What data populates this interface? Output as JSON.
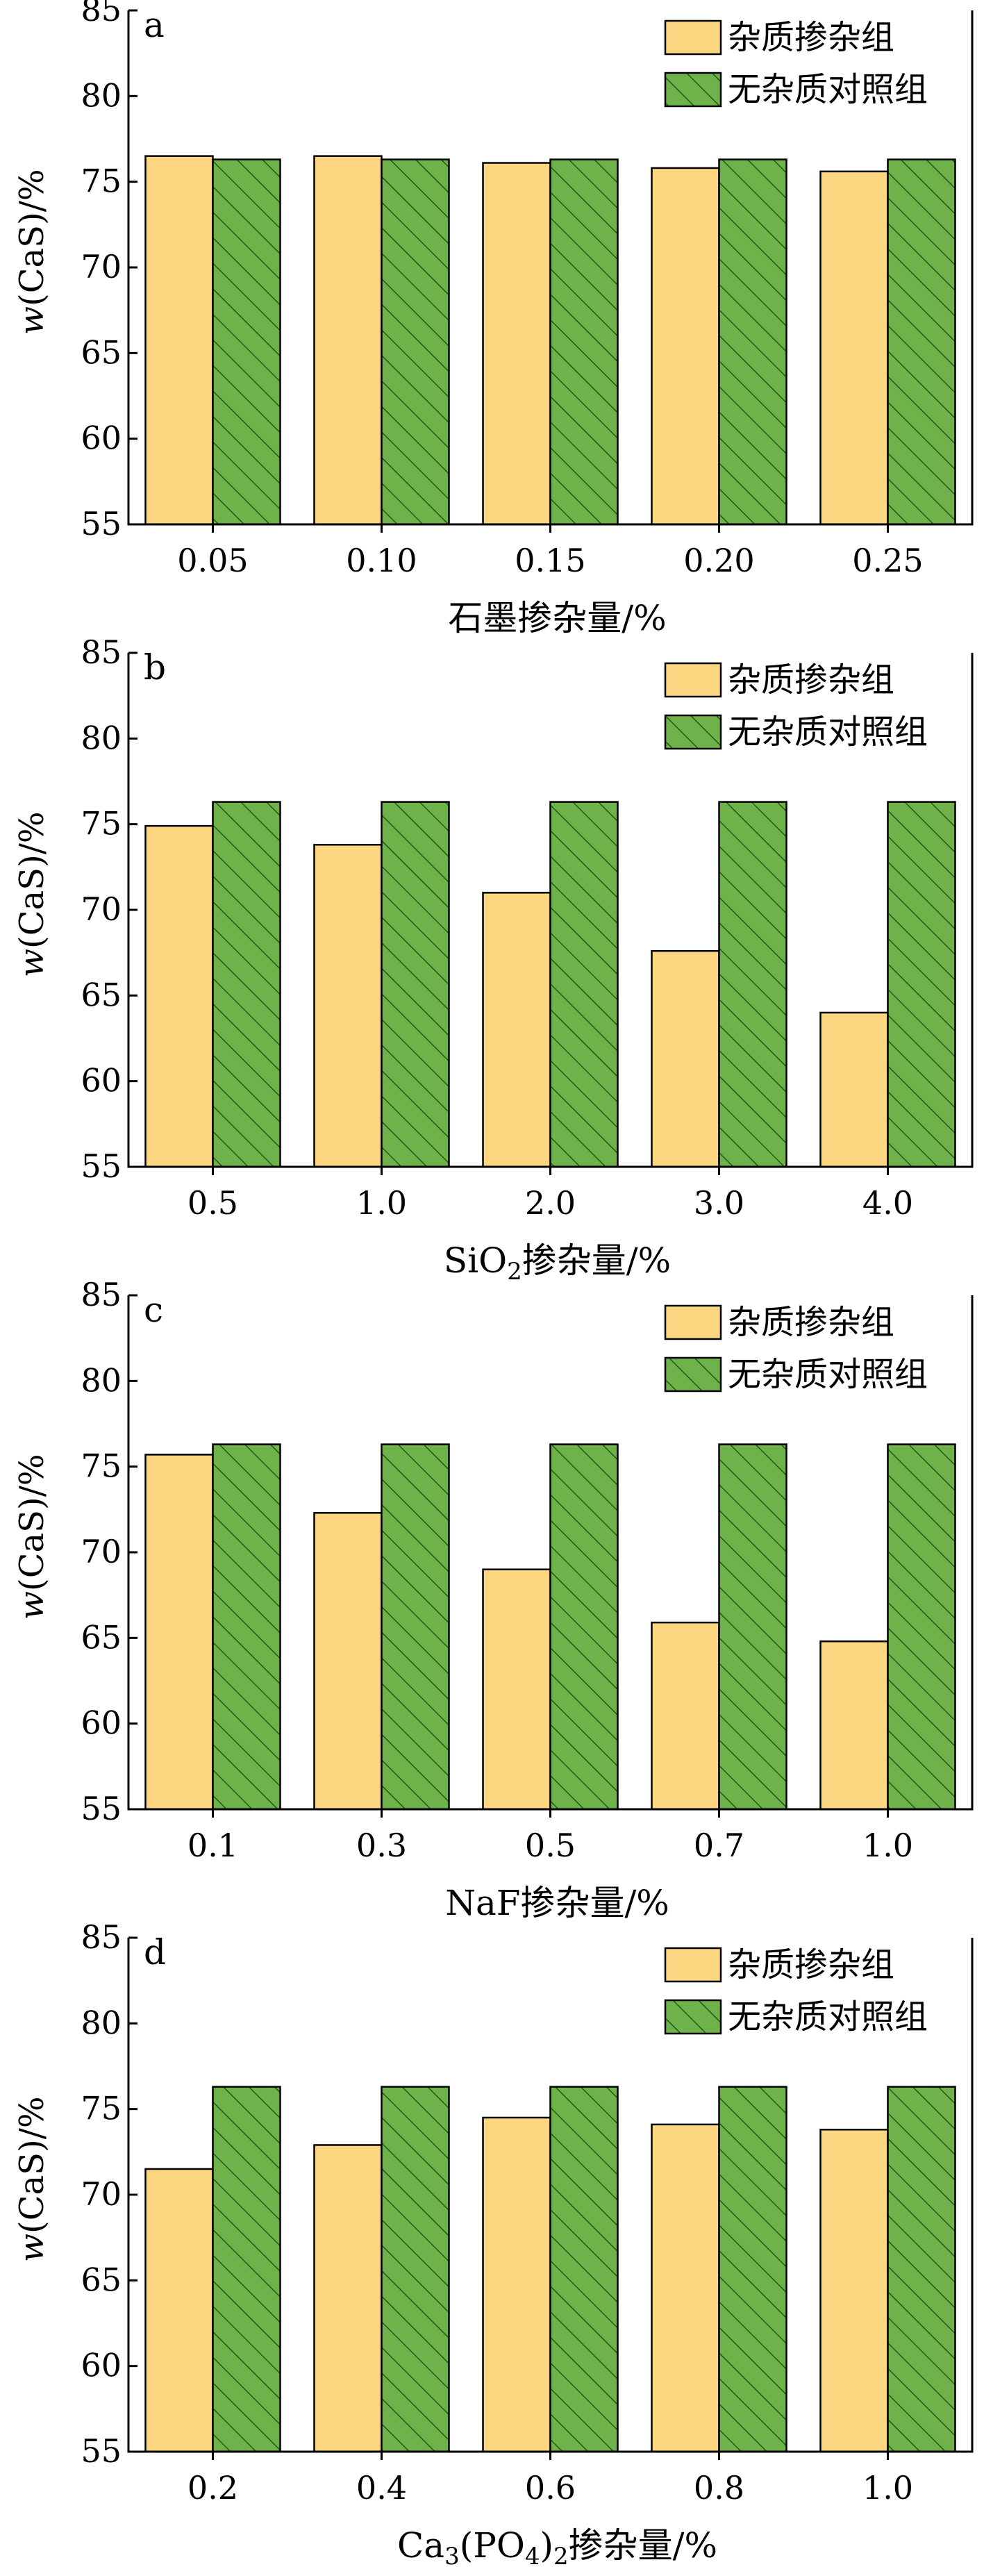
{
  "legend": {
    "doped_label": "杂质掺杂组",
    "control_label": "无杂质对照组"
  },
  "colors": {
    "doped_fill": "#FDD681",
    "control_fill": "#6FB24A",
    "hatch": "#1F5A1F",
    "axis": "#000000"
  },
  "chart_data": [
    {
      "type": "bar",
      "panel": "a",
      "xlabel": "石墨掺杂量/%",
      "ylabel": "w(CaS)/%",
      "ylim": [
        55,
        85
      ],
      "yticks": [
        55,
        60,
        65,
        70,
        75,
        80,
        85
      ],
      "categories": [
        "0.05",
        "0.10",
        "0.15",
        "0.20",
        "0.25"
      ],
      "series": [
        {
          "name": "杂质掺杂组",
          "values": [
            76.5,
            76.5,
            76.1,
            75.8,
            75.6
          ]
        },
        {
          "name": "无杂质对照组",
          "values": [
            76.3,
            76.3,
            76.3,
            76.3,
            76.3
          ]
        }
      ],
      "legend_position": "top-right"
    },
    {
      "type": "bar",
      "panel": "b",
      "xlabel": "SiO2掺杂量/%",
      "ylabel": "w(CaS)/%",
      "ylim": [
        55,
        85
      ],
      "yticks": [
        55,
        60,
        65,
        70,
        75,
        80,
        85
      ],
      "categories": [
        "0.5",
        "1.0",
        "2.0",
        "3.0",
        "4.0"
      ],
      "series": [
        {
          "name": "杂质掺杂组",
          "values": [
            74.9,
            73.8,
            71.0,
            67.6,
            64.0
          ]
        },
        {
          "name": "无杂质对照组",
          "values": [
            76.3,
            76.3,
            76.3,
            76.3,
            76.3
          ]
        }
      ],
      "legend_position": "top-right"
    },
    {
      "type": "bar",
      "panel": "c",
      "xlabel": "NaF掺杂量/%",
      "ylabel": "w(CaS)/%",
      "ylim": [
        55,
        85
      ],
      "yticks": [
        55,
        60,
        65,
        70,
        75,
        80,
        85
      ],
      "categories": [
        "0.1",
        "0.3",
        "0.5",
        "0.7",
        "1.0"
      ],
      "series": [
        {
          "name": "杂质掺杂组",
          "values": [
            75.7,
            72.3,
            69.0,
            65.9,
            64.8
          ]
        },
        {
          "name": "无杂质对照组",
          "values": [
            76.3,
            76.3,
            76.3,
            76.3,
            76.3
          ]
        }
      ],
      "legend_position": "top-right"
    },
    {
      "type": "bar",
      "panel": "d",
      "xlabel": "Ca3(PO4)2掺杂量/%",
      "ylabel": "w(CaS)/%",
      "ylim": [
        55,
        85
      ],
      "yticks": [
        55,
        60,
        65,
        70,
        75,
        80,
        85
      ],
      "categories": [
        "0.2",
        "0.4",
        "0.6",
        "0.8",
        "1.0"
      ],
      "series": [
        {
          "name": "杂质掺杂组",
          "values": [
            71.5,
            72.9,
            74.5,
            74.1,
            73.8
          ]
        },
        {
          "name": "无杂质对照组",
          "values": [
            76.3,
            76.3,
            76.3,
            76.3,
            76.3
          ]
        }
      ],
      "legend_position": "top-right"
    }
  ]
}
